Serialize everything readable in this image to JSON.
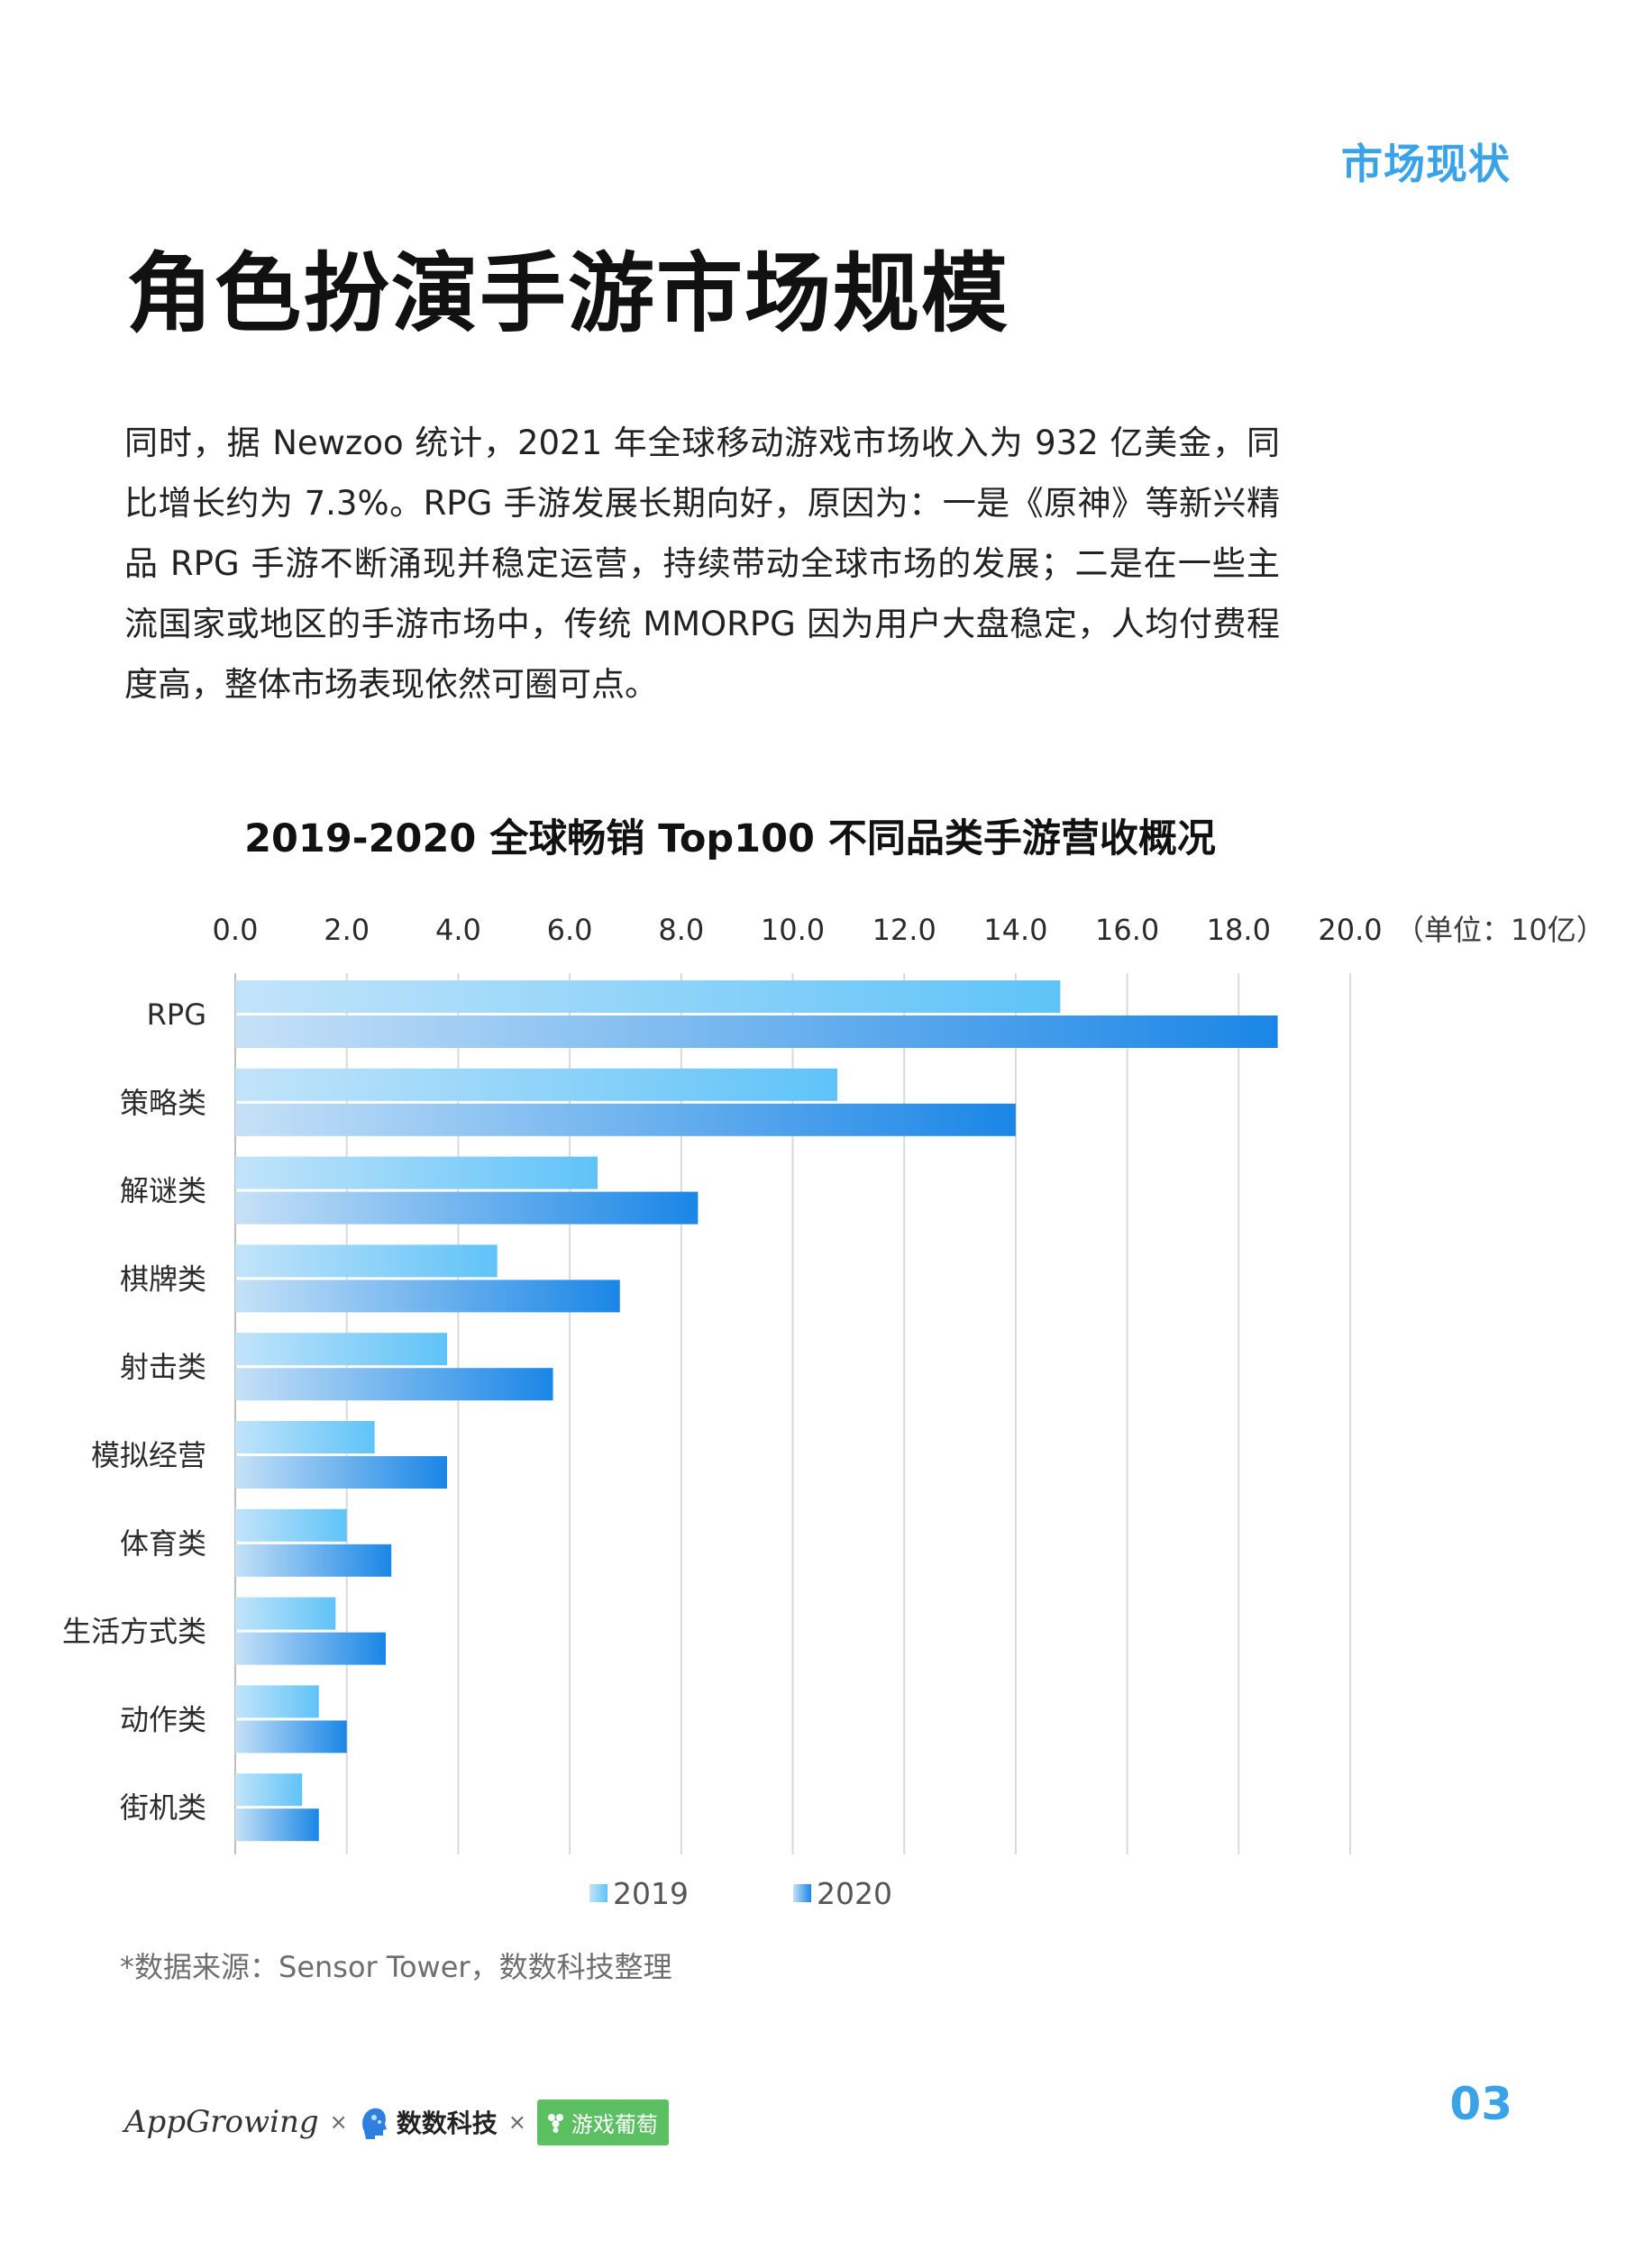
{
  "section_tag": "市场现状",
  "page_title": "角色扮演手游市场规模",
  "body_text": "同时，据 Newzoo 统计，2021 年全球移动游戏市场收入为 932 亿美金，同比增长约为 7.3%。RPG 手游发展长期向好，原因为：一是《原神》等新兴精品 RPG 手游不断涌现并稳定运营，持续带动全球市场的发展；二是在一些主流国家或地区的手游市场中，传统 MMORPG 因为用户大盘稳定，人均付费程度高，整体市场表现依然可圈可点。",
  "chart_data": {
    "type": "bar",
    "orientation": "horizontal",
    "title": "2019-2020 全球畅销 Top100 不同品类手游营收概况",
    "unit_label": "（单位：10亿）",
    "categories": [
      "RPG",
      "策略类",
      "解谜类",
      "棋牌类",
      "射击类",
      "模拟经营",
      "体育类",
      "生活方式类",
      "动作类",
      "街机类"
    ],
    "series": [
      {
        "name": "2019",
        "values": [
          14.8,
          10.8,
          6.5,
          4.7,
          3.8,
          2.5,
          2.0,
          1.8,
          1.5,
          1.2
        ],
        "color_light": "#c2e4fa",
        "color_dark": "#5fc3f8"
      },
      {
        "name": "2020",
        "values": [
          18.7,
          14.0,
          8.3,
          6.9,
          5.7,
          3.8,
          2.8,
          2.7,
          2.0,
          1.5
        ],
        "color_light": "#c6e1f7",
        "color_dark": "#1a86e6"
      }
    ],
    "x_ticks": [
      "0.0",
      "2.0",
      "4.0",
      "6.0",
      "8.0",
      "10.0",
      "12.0",
      "14.0",
      "16.0",
      "18.0",
      "20.0"
    ],
    "xlim": [
      0,
      20
    ],
    "grid": true,
    "legend_position": "bottom-center"
  },
  "source_note": "*数据来源：Sensor Tower，数数科技整理",
  "footer": {
    "brand_appgrowing": "AppGrowing",
    "separator": "×",
    "brand_shushu": "数数科技",
    "brand_youxi": "游戏葡萄"
  },
  "page_number": "03"
}
